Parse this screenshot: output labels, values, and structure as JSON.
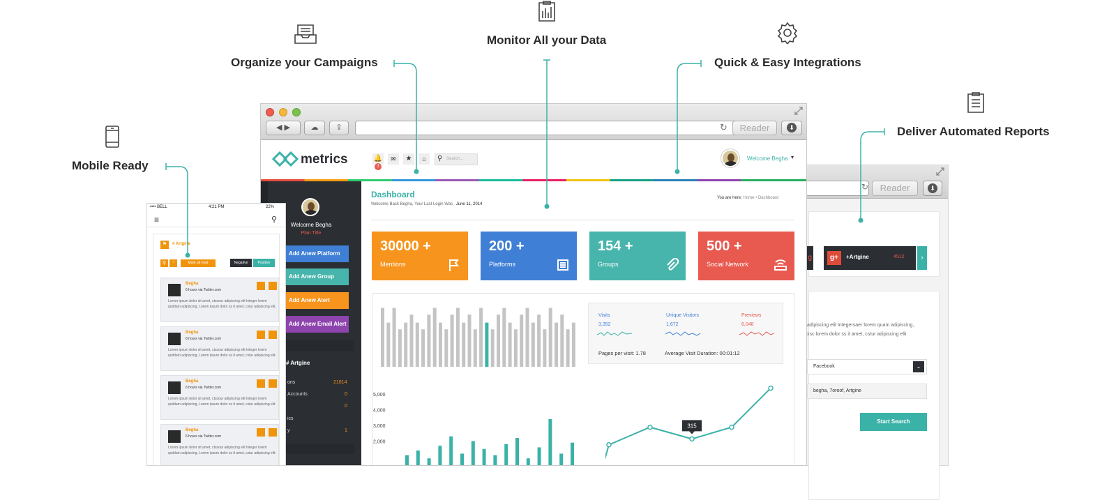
{
  "features": {
    "campaigns": "Organize your Campaigns",
    "monitor": "Monitor All your Data",
    "integrations": "Quick & Easy Integrations",
    "reports": "Deliver Automated Reports",
    "mobile": "Mobile Ready"
  },
  "browser": {
    "reader": "Reader"
  },
  "app": {
    "logo": "metrics",
    "notif_count": "3",
    "search_placeholder": "Search...",
    "welcome": "Welcome Begha"
  },
  "sidebar": {
    "welcome": "Welcome Begha",
    "plan": "Plan Title",
    "buttons": [
      "Add Anew Platform",
      "Add Anew Group",
      "Add Anew Alert",
      "Add Anew Email Alert"
    ],
    "section": "# Artgine",
    "rows": [
      {
        "label": "ons",
        "value": "21014"
      },
      {
        "label": "Accounts",
        "value": "0"
      },
      {
        "label": "",
        "value": "0"
      },
      {
        "label": "ics",
        "value": ""
      },
      {
        "label": "y",
        "value": "1"
      }
    ]
  },
  "dashboard": {
    "title": "Dashboard",
    "subtitle": "Welcome Back Begha, Your Last Login Was",
    "date": "June 11, 2014",
    "breadcrumb_prefix": "You are here:",
    "breadcrumb_home": "Home",
    "breadcrumb_current": "Dashboard"
  },
  "stats": [
    {
      "num": "30000 +",
      "label": "Mentions",
      "color": "#f7941d"
    },
    {
      "num": "200 +",
      "label": "Platforms",
      "color": "#3f7fd6"
    },
    {
      "num": "154 +",
      "label": "Groups",
      "color": "#47b5ac"
    },
    {
      "num": "500 +",
      "label": "Social Network",
      "color": "#e8594f"
    }
  ],
  "analytics": {
    "visits_label": "Visits",
    "visits_value": "3,352",
    "unique_label": "Unique Visitors",
    "unique_value": "1,672",
    "previews_label": "Previews",
    "previews_value": "6,048",
    "pages_label": "Pages per visit:",
    "pages_value": "1.78",
    "duration_label": "Average Visit Duration:",
    "duration_value": "00:01:12"
  },
  "chart_data": [
    {
      "type": "bar",
      "values": [
        88,
        66,
        88,
        56,
        66,
        78,
        66,
        56,
        78,
        88,
        66,
        56,
        78,
        88,
        66,
        78,
        56,
        88,
        66,
        56,
        78,
        88,
        66,
        56,
        78,
        88,
        66,
        78,
        56,
        88,
        66,
        78,
        56,
        66
      ],
      "highlight_index": 18,
      "colors": {
        "bar": "#c4c4c4",
        "highlight": "#3bb2a8"
      }
    },
    {
      "type": "bar",
      "y_ticks": [
        "5,000",
        "4,000",
        "3,000",
        "2,000"
      ],
      "ylim": [
        0,
        5000
      ],
      "values": [
        1100,
        1400,
        900,
        1700,
        2300,
        1200,
        2000,
        1500,
        1100,
        1800,
        2200,
        900,
        1600,
        3400,
        1200,
        1900
      ],
      "color": "#3bb2a8"
    },
    {
      "type": "line",
      "values": [
        1400,
        2300,
        1700,
        2300,
        4300
      ],
      "tooltip": "315",
      "color": "#3bb2a8"
    }
  ],
  "back": {
    "artgine": "+Artgine",
    "count": "4512",
    "text1": "adipiscing elit Integersaer lorem quam adipiscing,",
    "text2": "xsc lorem dolor ss it amet, cstur adipiscing elit",
    "select": "Facebook",
    "tags": "begha, 7oroof, Artgine",
    "button": "Start Search"
  },
  "phone": {
    "carrier": "•••• BELL",
    "time": "4:21 PM",
    "battery": "22%",
    "tag": "# Artgine",
    "mark": "Mark all read",
    "negative": "Negative",
    "positive": "Positive",
    "posts": [
      {
        "name": "Begha",
        "via": "6 hours via Twitter.com",
        "text": "Lorem ipsum dolor sit amet, ctssour adipiscing elit Integer lorem quitdam adipiscing, Lorem ipsum dolor ss it amet, cstur adipiscing elit."
      },
      {
        "name": "Begha",
        "via": "6 hours via Twitter.com",
        "text": "Lorem ipsum dolor sit amet, ctssour adipiscing elit Integer lorem quitdam adipiscing, Lorem ipsum dolor ss it amet, cstur adipiscing elit."
      },
      {
        "name": "Begha",
        "via": "6 hours via Twitter.com",
        "text": "Lorem ipsum dolor sit amet, ctssour adipiscing elit Integer lorem quitdam adipiscing, Lorem ipsum dolor ss it amet, cstur adipiscing elit."
      },
      {
        "name": "Begha",
        "via": "6 hours via Twitter.com",
        "text": "Lorem ipsum dolor sit amet, ctssour adipiscing elit Integer lorem quitdam adipiscing, Lorem ipsum dolor ss it amet, cstur adipiscing elit."
      }
    ]
  },
  "colors": {
    "teal": "#3bb2a8",
    "orange": "#f0940c",
    "dark": "#2b2e33"
  }
}
